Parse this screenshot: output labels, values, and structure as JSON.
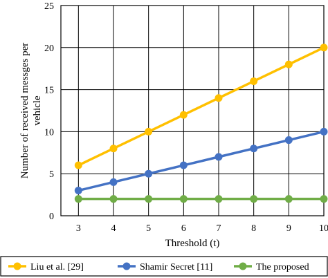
{
  "chart_data": {
    "type": "line",
    "title": "",
    "xlabel": "Threshold (t)",
    "ylabel": "Number of received messges per vehicle",
    "x": [
      3,
      4,
      5,
      6,
      7,
      8,
      9,
      10
    ],
    "ylim": [
      0,
      25
    ],
    "yticks": [
      0,
      5,
      10,
      15,
      20,
      25
    ],
    "grid": true,
    "legend_position": "bottom",
    "series": [
      {
        "name": "Liu et al. [29]",
        "color": "#FFC000",
        "values": [
          6,
          8,
          10,
          12,
          14,
          16,
          18,
          20
        ]
      },
      {
        "name": "Shamir Secret [11]",
        "color": "#4472C4",
        "values": [
          3,
          4,
          5,
          6,
          7,
          8,
          9,
          10
        ]
      },
      {
        "name": "The proposed",
        "color": "#70AD47",
        "values": [
          2,
          2,
          2,
          2,
          2,
          2,
          2,
          2
        ]
      }
    ]
  }
}
